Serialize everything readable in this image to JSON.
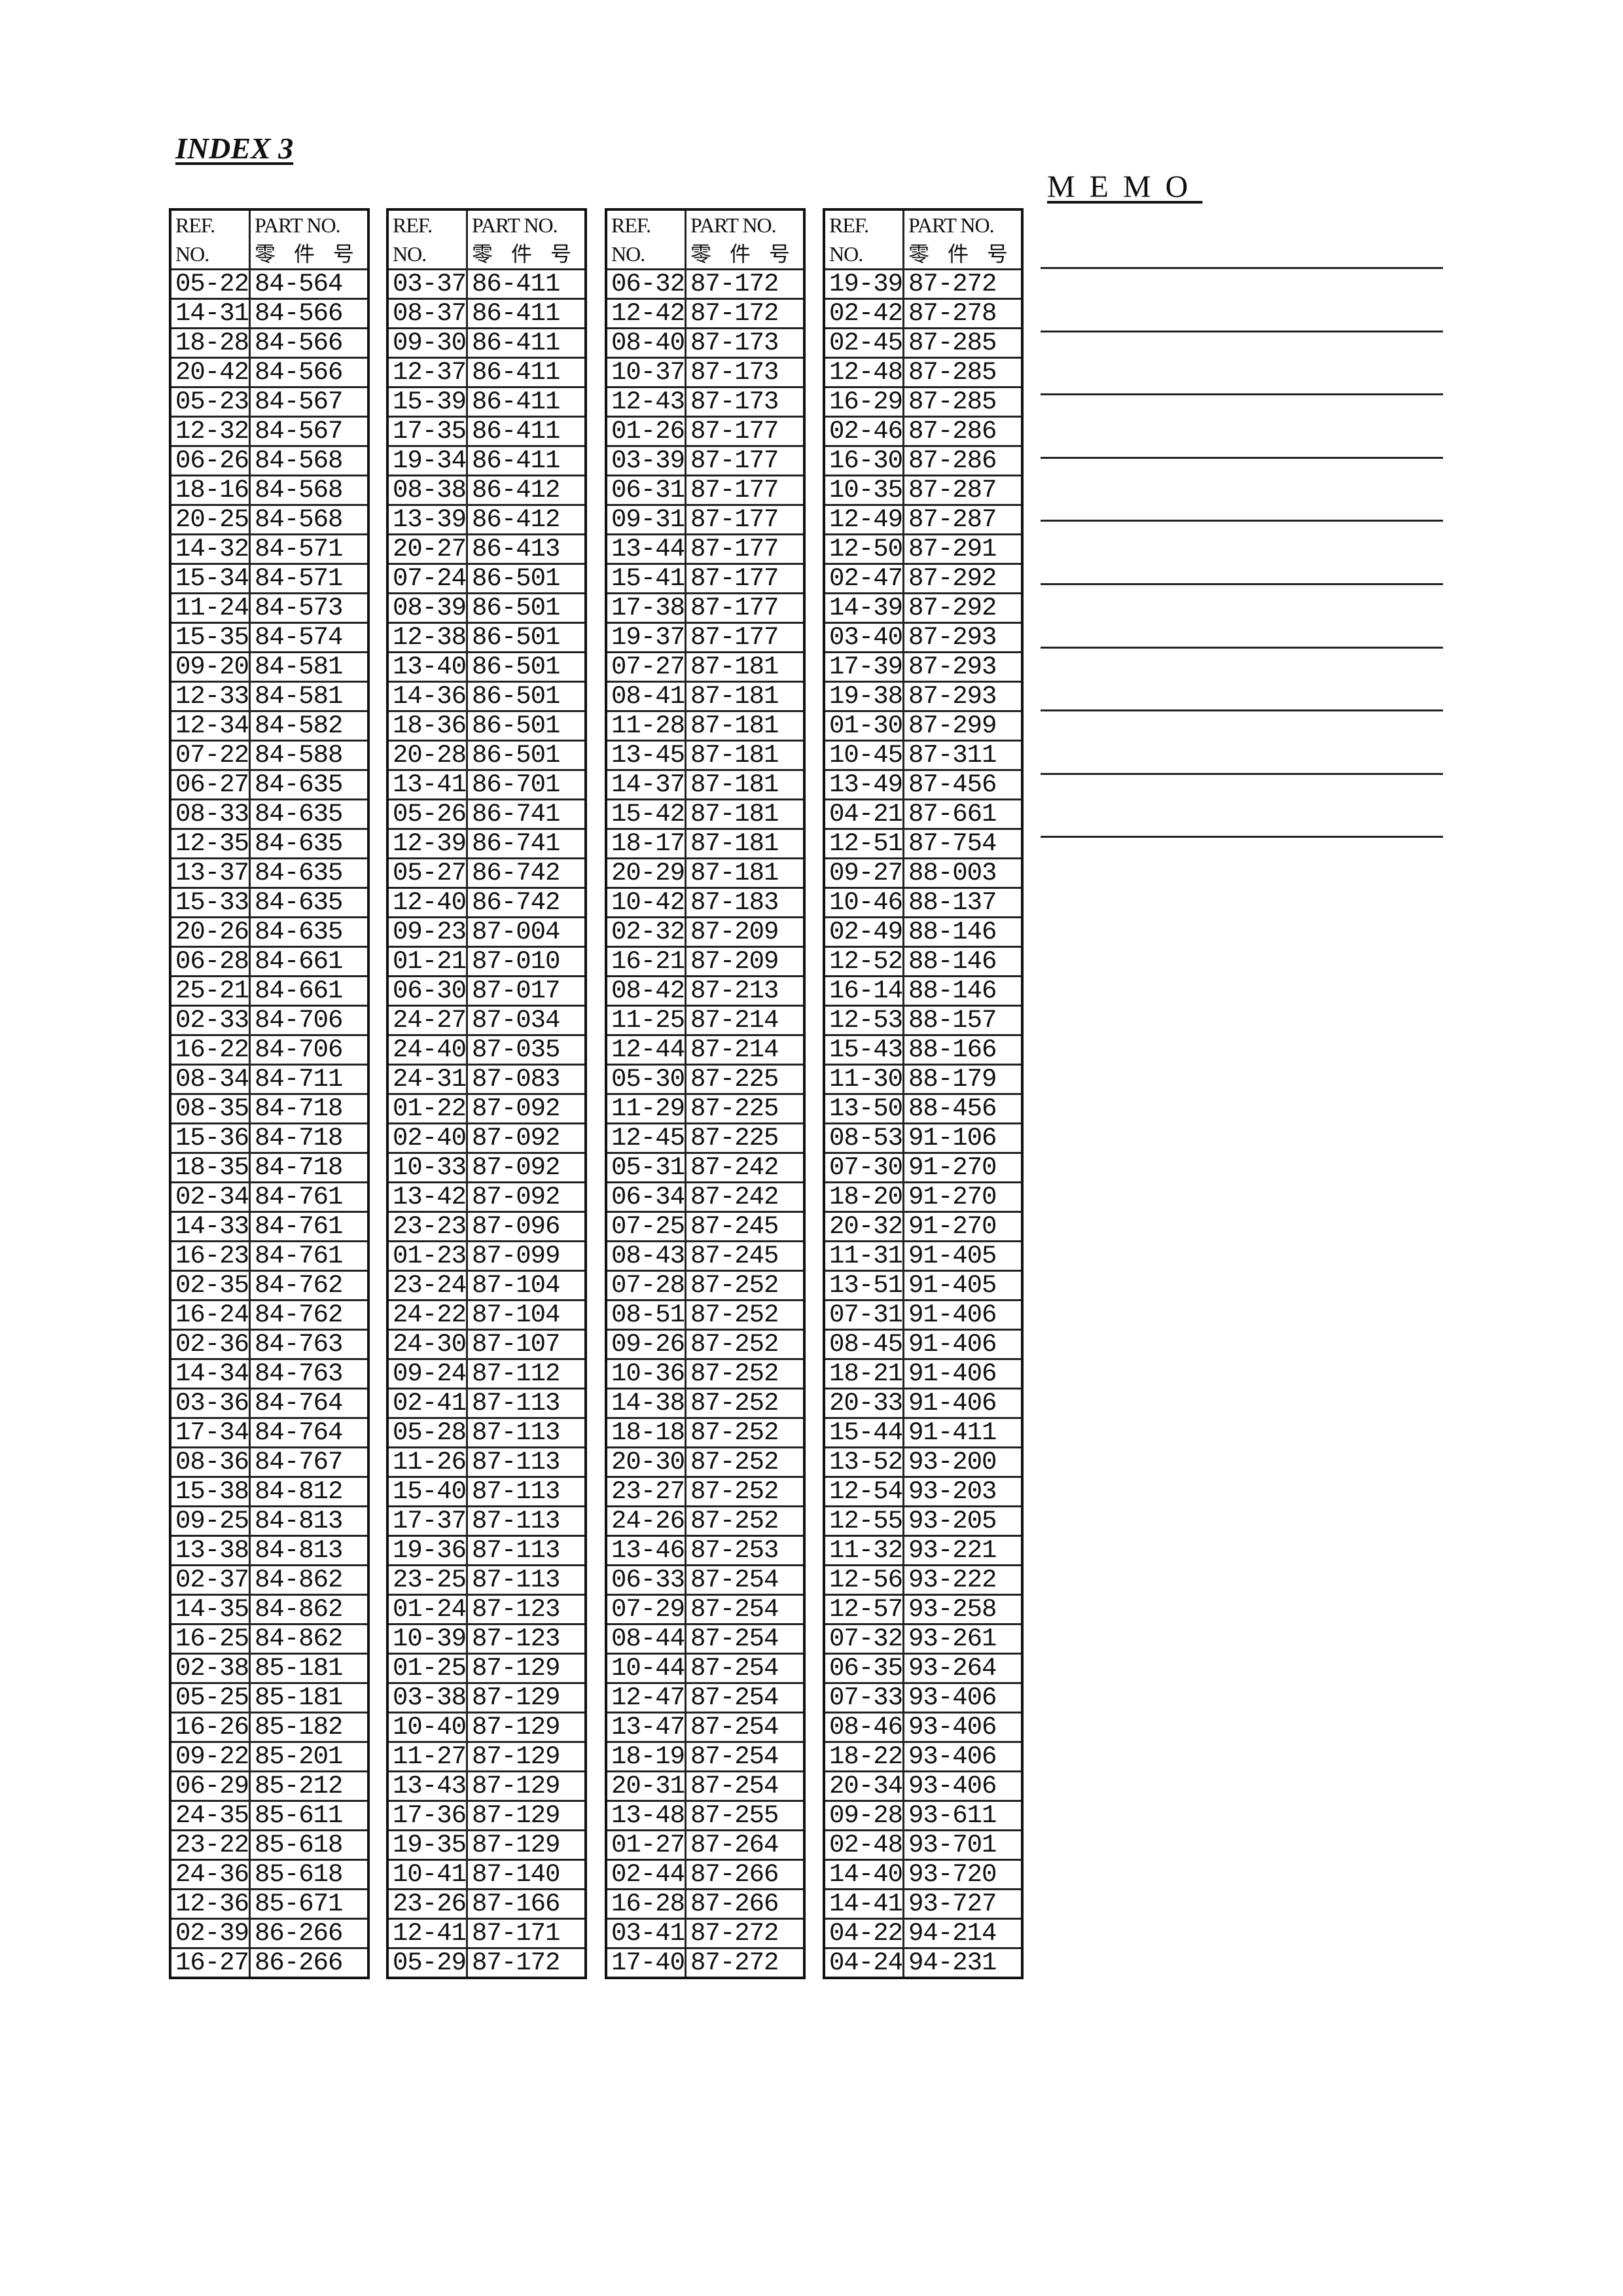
{
  "title": "INDEX 3",
  "memo": {
    "title": "MEMO",
    "line_count": 10
  },
  "header": {
    "ref_line1": "REF.",
    "ref_line2": "NO.",
    "part_line1": "PART NO.",
    "part_line2": "零 件 号"
  },
  "columns": [
    [
      [
        "05-22",
        "84-564"
      ],
      [
        "14-31",
        "84-566"
      ],
      [
        "18-28",
        "84-566"
      ],
      [
        "20-42",
        "84-566"
      ],
      [
        "05-23",
        "84-567"
      ],
      [
        "12-32",
        "84-567"
      ],
      [
        "06-26",
        "84-568"
      ],
      [
        "18-16",
        "84-568"
      ],
      [
        "20-25",
        "84-568"
      ],
      [
        "14-32",
        "84-571"
      ],
      [
        "15-34",
        "84-571"
      ],
      [
        "11-24",
        "84-573"
      ],
      [
        "15-35",
        "84-574"
      ],
      [
        "09-20",
        "84-581"
      ],
      [
        "12-33",
        "84-581"
      ],
      [
        "12-34",
        "84-582"
      ],
      [
        "07-22",
        "84-588"
      ],
      [
        "06-27",
        "84-635"
      ],
      [
        "08-33",
        "84-635"
      ],
      [
        "12-35",
        "84-635"
      ],
      [
        "13-37",
        "84-635"
      ],
      [
        "15-33",
        "84-635"
      ],
      [
        "20-26",
        "84-635"
      ],
      [
        "06-28",
        "84-661"
      ],
      [
        "25-21",
        "84-661"
      ],
      [
        "02-33",
        "84-706"
      ],
      [
        "16-22",
        "84-706"
      ],
      [
        "08-34",
        "84-711"
      ],
      [
        "08-35",
        "84-718"
      ],
      [
        "15-36",
        "84-718"
      ],
      [
        "18-35",
        "84-718"
      ],
      [
        "02-34",
        "84-761"
      ],
      [
        "14-33",
        "84-761"
      ],
      [
        "16-23",
        "84-761"
      ],
      [
        "02-35",
        "84-762"
      ],
      [
        "16-24",
        "84-762"
      ],
      [
        "02-36",
        "84-763"
      ],
      [
        "14-34",
        "84-763"
      ],
      [
        "03-36",
        "84-764"
      ],
      [
        "17-34",
        "84-764"
      ],
      [
        "08-36",
        "84-767"
      ],
      [
        "15-38",
        "84-812"
      ],
      [
        "09-25",
        "84-813"
      ],
      [
        "13-38",
        "84-813"
      ],
      [
        "02-37",
        "84-862"
      ],
      [
        "14-35",
        "84-862"
      ],
      [
        "16-25",
        "84-862"
      ],
      [
        "02-38",
        "85-181"
      ],
      [
        "05-25",
        "85-181"
      ],
      [
        "16-26",
        "85-182"
      ],
      [
        "09-22",
        "85-201"
      ],
      [
        "06-29",
        "85-212"
      ],
      [
        "24-35",
        "85-611"
      ],
      [
        "23-22",
        "85-618"
      ],
      [
        "24-36",
        "85-618"
      ],
      [
        "12-36",
        "85-671"
      ],
      [
        "02-39",
        "86-266"
      ],
      [
        "16-27",
        "86-266"
      ]
    ],
    [
      [
        "03-37",
        "86-411"
      ],
      [
        "08-37",
        "86-411"
      ],
      [
        "09-30",
        "86-411"
      ],
      [
        "12-37",
        "86-411"
      ],
      [
        "15-39",
        "86-411"
      ],
      [
        "17-35",
        "86-411"
      ],
      [
        "19-34",
        "86-411"
      ],
      [
        "08-38",
        "86-412"
      ],
      [
        "13-39",
        "86-412"
      ],
      [
        "20-27",
        "86-413"
      ],
      [
        "07-24",
        "86-501"
      ],
      [
        "08-39",
        "86-501"
      ],
      [
        "12-38",
        "86-501"
      ],
      [
        "13-40",
        "86-501"
      ],
      [
        "14-36",
        "86-501"
      ],
      [
        "18-36",
        "86-501"
      ],
      [
        "20-28",
        "86-501"
      ],
      [
        "13-41",
        "86-701"
      ],
      [
        "05-26",
        "86-741"
      ],
      [
        "12-39",
        "86-741"
      ],
      [
        "05-27",
        "86-742"
      ],
      [
        "12-40",
        "86-742"
      ],
      [
        "09-23",
        "87-004"
      ],
      [
        "01-21",
        "87-010"
      ],
      [
        "06-30",
        "87-017"
      ],
      [
        "24-27",
        "87-034"
      ],
      [
        "24-40",
        "87-035"
      ],
      [
        "24-31",
        "87-083"
      ],
      [
        "01-22",
        "87-092"
      ],
      [
        "02-40",
        "87-092"
      ],
      [
        "10-33",
        "87-092"
      ],
      [
        "13-42",
        "87-092"
      ],
      [
        "23-23",
        "87-096"
      ],
      [
        "01-23",
        "87-099"
      ],
      [
        "23-24",
        "87-104"
      ],
      [
        "24-22",
        "87-104"
      ],
      [
        "24-30",
        "87-107"
      ],
      [
        "09-24",
        "87-112"
      ],
      [
        "02-41",
        "87-113"
      ],
      [
        "05-28",
        "87-113"
      ],
      [
        "11-26",
        "87-113"
      ],
      [
        "15-40",
        "87-113"
      ],
      [
        "17-37",
        "87-113"
      ],
      [
        "19-36",
        "87-113"
      ],
      [
        "23-25",
        "87-113"
      ],
      [
        "01-24",
        "87-123"
      ],
      [
        "10-39",
        "87-123"
      ],
      [
        "01-25",
        "87-129"
      ],
      [
        "03-38",
        "87-129"
      ],
      [
        "10-40",
        "87-129"
      ],
      [
        "11-27",
        "87-129"
      ],
      [
        "13-43",
        "87-129"
      ],
      [
        "17-36",
        "87-129"
      ],
      [
        "19-35",
        "87-129"
      ],
      [
        "10-41",
        "87-140"
      ],
      [
        "23-26",
        "87-166"
      ],
      [
        "12-41",
        "87-171"
      ],
      [
        "05-29",
        "87-172"
      ]
    ],
    [
      [
        "06-32",
        "87-172"
      ],
      [
        "12-42",
        "87-172"
      ],
      [
        "08-40",
        "87-173"
      ],
      [
        "10-37",
        "87-173"
      ],
      [
        "12-43",
        "87-173"
      ],
      [
        "01-26",
        "87-177"
      ],
      [
        "03-39",
        "87-177"
      ],
      [
        "06-31",
        "87-177"
      ],
      [
        "09-31",
        "87-177"
      ],
      [
        "13-44",
        "87-177"
      ],
      [
        "15-41",
        "87-177"
      ],
      [
        "17-38",
        "87-177"
      ],
      [
        "19-37",
        "87-177"
      ],
      [
        "07-27",
        "87-181"
      ],
      [
        "08-41",
        "87-181"
      ],
      [
        "11-28",
        "87-181"
      ],
      [
        "13-45",
        "87-181"
      ],
      [
        "14-37",
        "87-181"
      ],
      [
        "15-42",
        "87-181"
      ],
      [
        "18-17",
        "87-181"
      ],
      [
        "20-29",
        "87-181"
      ],
      [
        "10-42",
        "87-183"
      ],
      [
        "02-32",
        "87-209"
      ],
      [
        "16-21",
        "87-209"
      ],
      [
        "08-42",
        "87-213"
      ],
      [
        "11-25",
        "87-214"
      ],
      [
        "12-44",
        "87-214"
      ],
      [
        "05-30",
        "87-225"
      ],
      [
        "11-29",
        "87-225"
      ],
      [
        "12-45",
        "87-225"
      ],
      [
        "05-31",
        "87-242"
      ],
      [
        "06-34",
        "87-242"
      ],
      [
        "07-25",
        "87-245"
      ],
      [
        "08-43",
        "87-245"
      ],
      [
        "07-28",
        "87-252"
      ],
      [
        "08-51",
        "87-252"
      ],
      [
        "09-26",
        "87-252"
      ],
      [
        "10-36",
        "87-252"
      ],
      [
        "14-38",
        "87-252"
      ],
      [
        "18-18",
        "87-252"
      ],
      [
        "20-30",
        "87-252"
      ],
      [
        "23-27",
        "87-252"
      ],
      [
        "24-26",
        "87-252"
      ],
      [
        "13-46",
        "87-253"
      ],
      [
        "06-33",
        "87-254"
      ],
      [
        "07-29",
        "87-254"
      ],
      [
        "08-44",
        "87-254"
      ],
      [
        "10-44",
        "87-254"
      ],
      [
        "12-47",
        "87-254"
      ],
      [
        "13-47",
        "87-254"
      ],
      [
        "18-19",
        "87-254"
      ],
      [
        "20-31",
        "87-254"
      ],
      [
        "13-48",
        "87-255"
      ],
      [
        "01-27",
        "87-264"
      ],
      [
        "02-44",
        "87-266"
      ],
      [
        "16-28",
        "87-266"
      ],
      [
        "03-41",
        "87-272"
      ],
      [
        "17-40",
        "87-272"
      ]
    ],
    [
      [
        "19-39",
        "87-272"
      ],
      [
        "02-42",
        "87-278"
      ],
      [
        "02-45",
        "87-285"
      ],
      [
        "12-48",
        "87-285"
      ],
      [
        "16-29",
        "87-285"
      ],
      [
        "02-46",
        "87-286"
      ],
      [
        "16-30",
        "87-286"
      ],
      [
        "10-35",
        "87-287"
      ],
      [
        "12-49",
        "87-287"
      ],
      [
        "12-50",
        "87-291"
      ],
      [
        "02-47",
        "87-292"
      ],
      [
        "14-39",
        "87-292"
      ],
      [
        "03-40",
        "87-293"
      ],
      [
        "17-39",
        "87-293"
      ],
      [
        "19-38",
        "87-293"
      ],
      [
        "01-30",
        "87-299"
      ],
      [
        "10-45",
        "87-311"
      ],
      [
        "13-49",
        "87-456"
      ],
      [
        "04-21",
        "87-661"
      ],
      [
        "12-51",
        "87-754"
      ],
      [
        "09-27",
        "88-003"
      ],
      [
        "10-46",
        "88-137"
      ],
      [
        "02-49",
        "88-146"
      ],
      [
        "12-52",
        "88-146"
      ],
      [
        "16-14",
        "88-146"
      ],
      [
        "12-53",
        "88-157"
      ],
      [
        "15-43",
        "88-166"
      ],
      [
        "11-30",
        "88-179"
      ],
      [
        "13-50",
        "88-456"
      ],
      [
        "08-53",
        "91-106"
      ],
      [
        "07-30",
        "91-270"
      ],
      [
        "18-20",
        "91-270"
      ],
      [
        "20-32",
        "91-270"
      ],
      [
        "11-31",
        "91-405"
      ],
      [
        "13-51",
        "91-405"
      ],
      [
        "07-31",
        "91-406"
      ],
      [
        "08-45",
        "91-406"
      ],
      [
        "18-21",
        "91-406"
      ],
      [
        "20-33",
        "91-406"
      ],
      [
        "15-44",
        "91-411"
      ],
      [
        "13-52",
        "93-200"
      ],
      [
        "12-54",
        "93-203"
      ],
      [
        "12-55",
        "93-205"
      ],
      [
        "11-32",
        "93-221"
      ],
      [
        "12-56",
        "93-222"
      ],
      [
        "12-57",
        "93-258"
      ],
      [
        "07-32",
        "93-261"
      ],
      [
        "06-35",
        "93-264"
      ],
      [
        "07-33",
        "93-406"
      ],
      [
        "08-46",
        "93-406"
      ],
      [
        "18-22",
        "93-406"
      ],
      [
        "20-34",
        "93-406"
      ],
      [
        "09-28",
        "93-611"
      ],
      [
        "02-48",
        "93-701"
      ],
      [
        "14-40",
        "93-720"
      ],
      [
        "14-41",
        "93-727"
      ],
      [
        "04-22",
        "94-214"
      ],
      [
        "04-24",
        "94-231"
      ]
    ]
  ]
}
